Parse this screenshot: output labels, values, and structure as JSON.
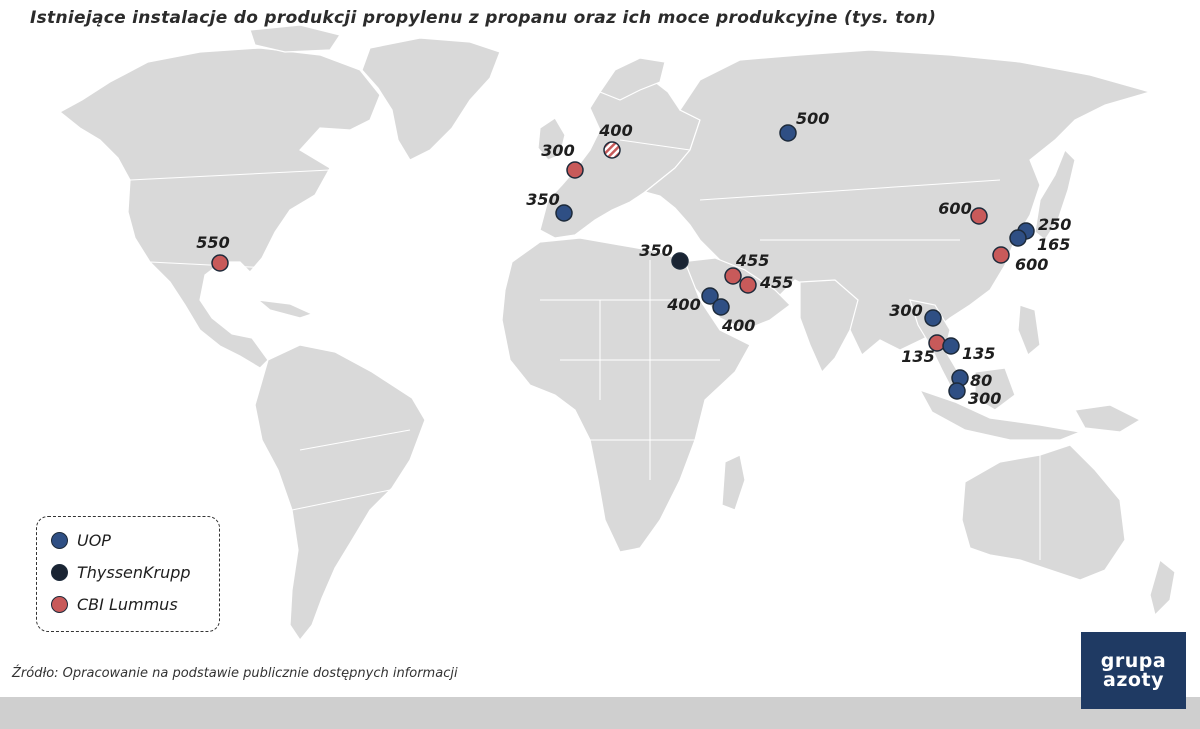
{
  "title": "Istniejące instalacje do produkcji propylenu z propanu oraz ich moce produkcyjne (tys. ton)",
  "colors": {
    "UOP": "#2f4f84",
    "ThyssenKrupp": "#1a2433",
    "CBI Lummus": "#c85a5a",
    "land": "#d9d9d9"
  },
  "legend": [
    {
      "label": "UOP",
      "color": "#2f4f84"
    },
    {
      "label": "ThyssenKrupp",
      "color": "#1a2433"
    },
    {
      "label": "CBI Lummus",
      "color": "#c85a5a"
    }
  ],
  "plants": [
    {
      "company": "UOP",
      "capacity": "500",
      "region": "Russia"
    },
    {
      "company": "CBI Lummus",
      "capacity": "400",
      "region": "Poland",
      "pattern": "striped"
    },
    {
      "company": "CBI Lummus",
      "capacity": "300",
      "region": "Belgium"
    },
    {
      "company": "UOP",
      "capacity": "350",
      "region": "Spain"
    },
    {
      "company": "CBI Lummus",
      "capacity": "550",
      "region": "USA"
    },
    {
      "company": "ThyssenKrupp",
      "capacity": "350",
      "region": "Egypt"
    },
    {
      "company": "CBI Lummus",
      "capacity": "455",
      "region": "Saudi Arabia"
    },
    {
      "company": "CBI Lummus",
      "capacity": "455",
      "region": "Saudi Arabia"
    },
    {
      "company": "UOP",
      "capacity": "400",
      "region": "Saudi Arabia"
    },
    {
      "company": "UOP",
      "capacity": "400",
      "region": "Saudi Arabia"
    },
    {
      "company": "CBI Lummus",
      "capacity": "600",
      "region": "China"
    },
    {
      "company": "UOP",
      "capacity": "250",
      "region": "South Korea"
    },
    {
      "company": "UOP",
      "capacity": "165",
      "region": "South Korea"
    },
    {
      "company": "CBI Lummus",
      "capacity": "600",
      "region": "China"
    },
    {
      "company": "UOP",
      "capacity": "300",
      "region": "Thailand"
    },
    {
      "company": "CBI Lummus",
      "capacity": "135",
      "region": "Thailand"
    },
    {
      "company": "UOP",
      "capacity": "135",
      "region": "Thailand"
    },
    {
      "company": "UOP",
      "capacity": "80",
      "region": "Malaysia"
    },
    {
      "company": "UOP",
      "capacity": "300",
      "region": "Malaysia"
    }
  ],
  "source": "Źródło: Opracowanie na podstawie publicznie dostępnych informacji",
  "logo": {
    "line1": "grupa",
    "line2": "azoty"
  }
}
